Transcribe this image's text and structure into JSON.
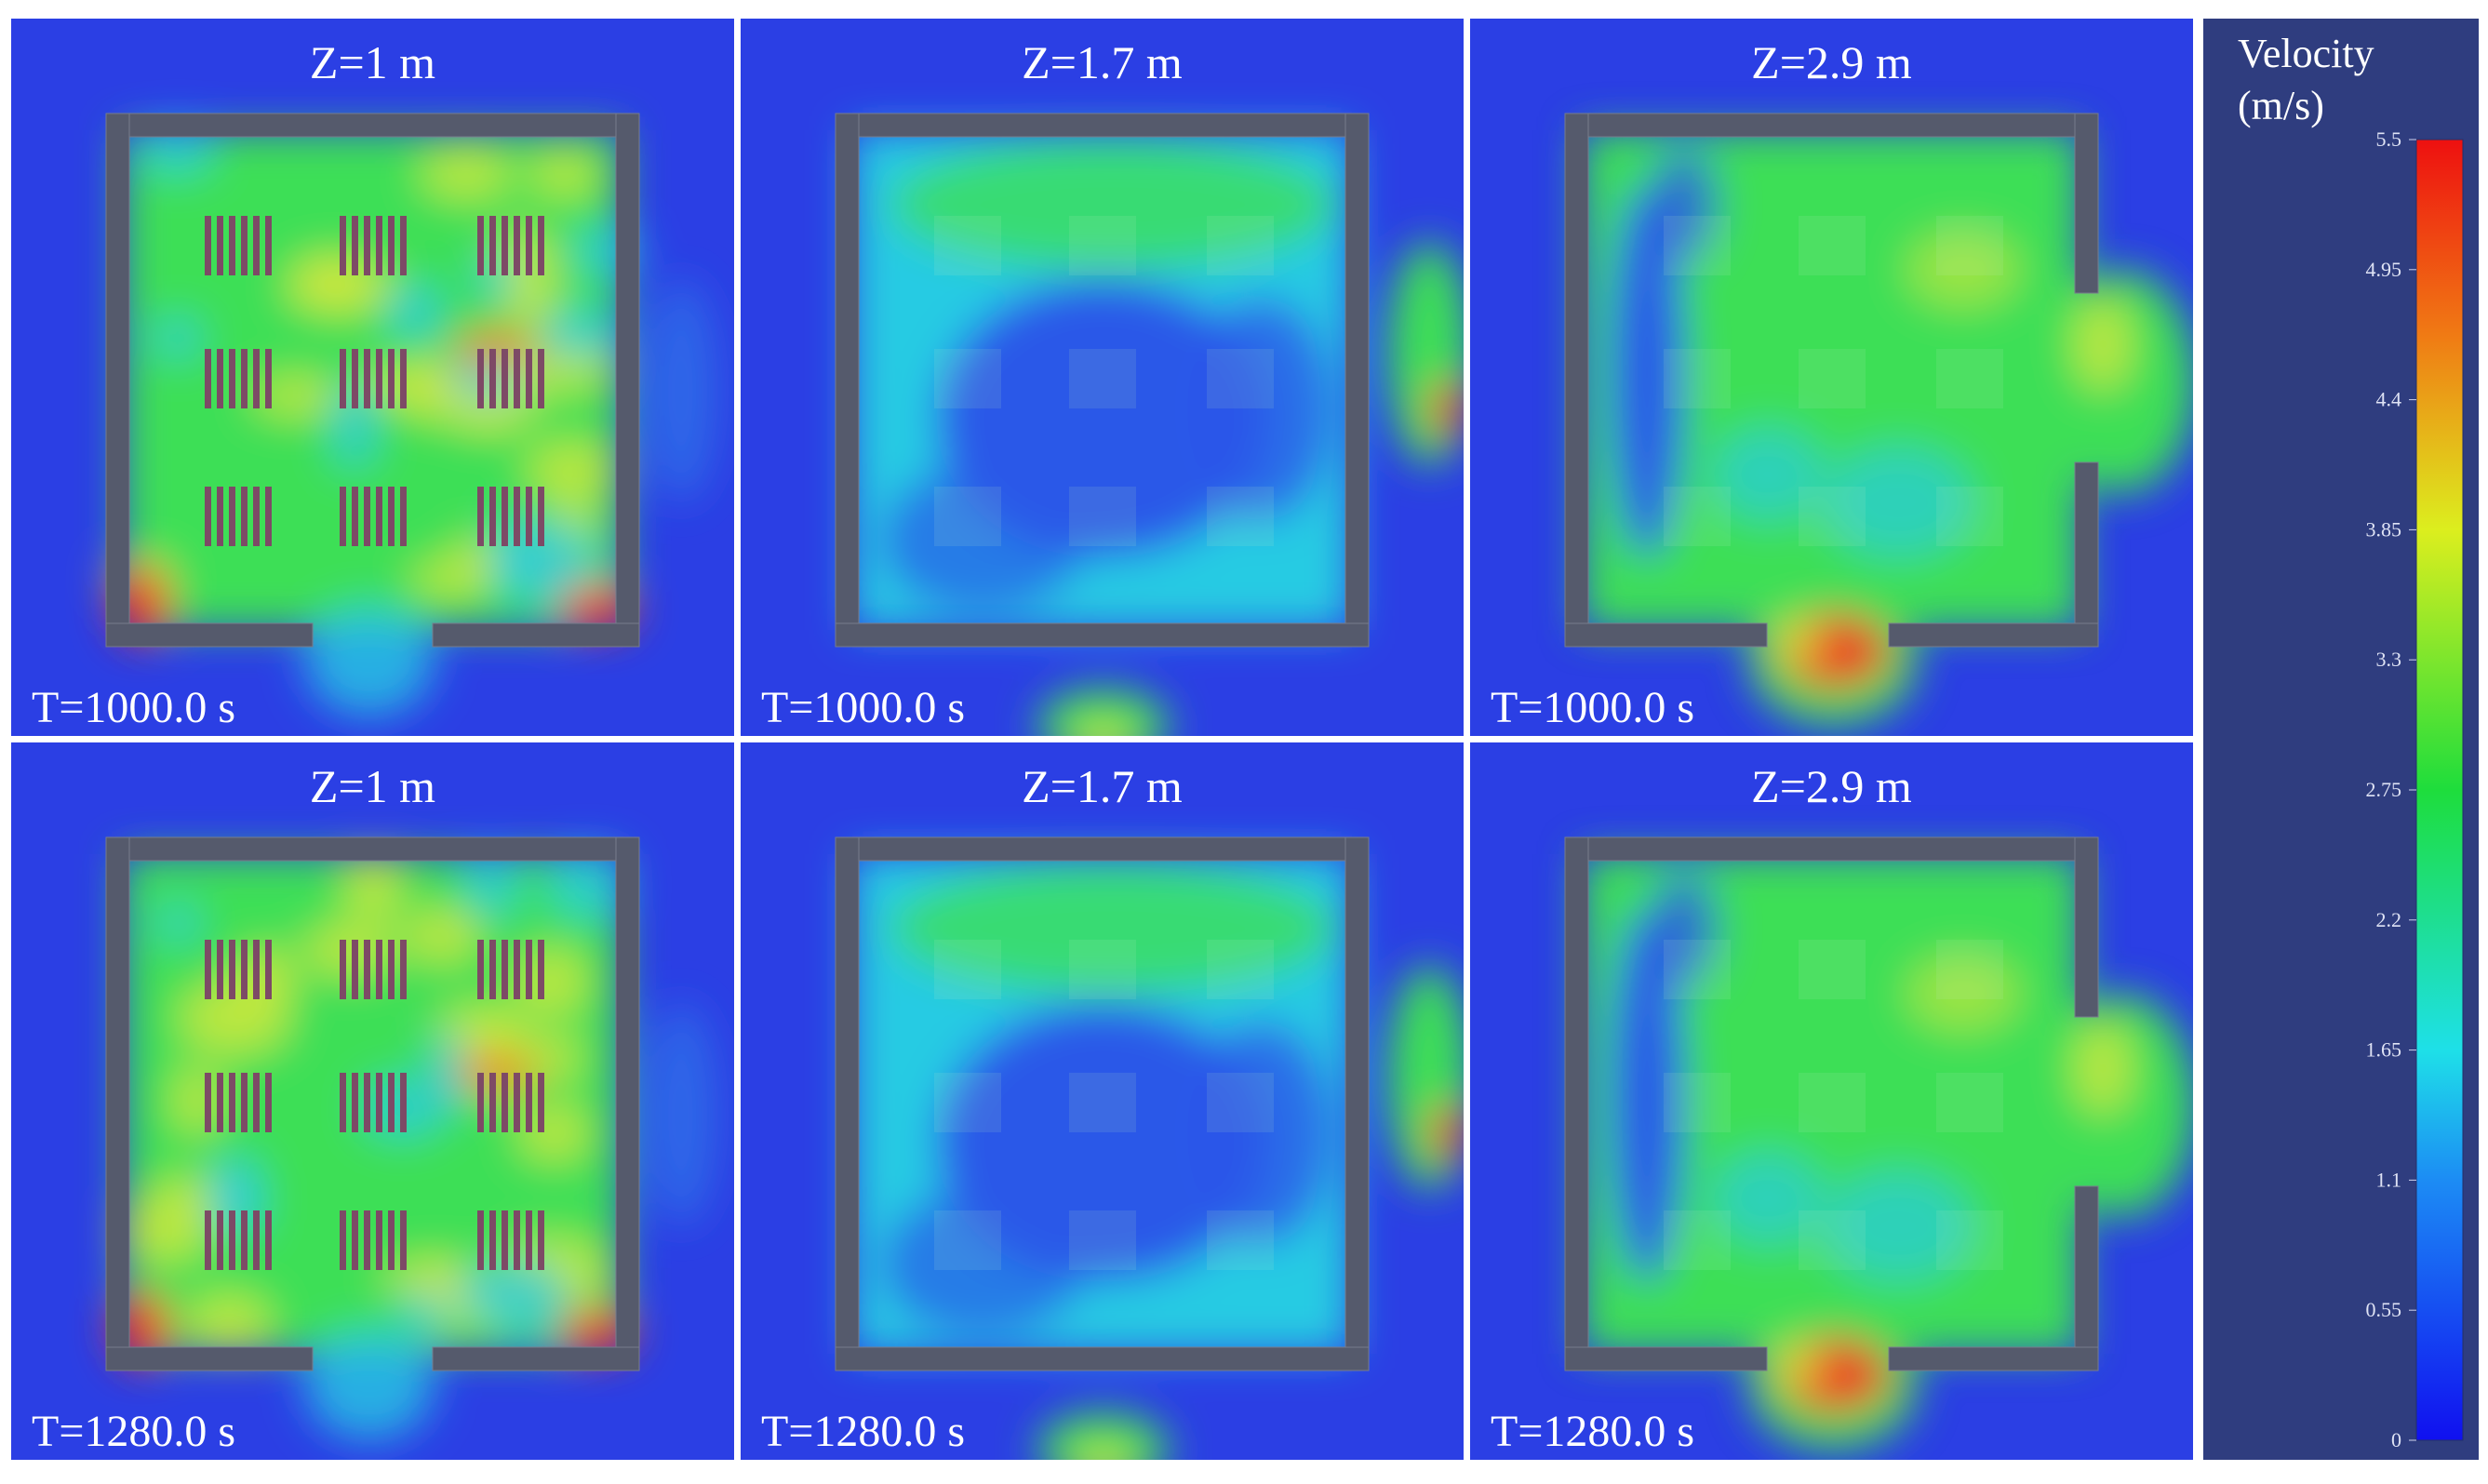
{
  "panels": [
    {
      "title": "Z=1 m",
      "time": "T=1000.0 s"
    },
    {
      "title": "Z=1.7 m",
      "time": "T=1000.0 s"
    },
    {
      "title": "Z=2.9 m",
      "time": "T=1000.0 s"
    },
    {
      "title": "Z=1 m",
      "time": "T=1280.0 s"
    },
    {
      "title": "Z=1.7 m",
      "time": "T=1280.0 s"
    },
    {
      "title": "Z=2.9 m",
      "time": "T=1280.0 s"
    }
  ],
  "colorbar": {
    "title": "Velocity",
    "unit": "(m/s)",
    "range": [
      0,
      5.5
    ],
    "ticks": [
      0,
      0.55,
      1.1,
      1.65,
      2.2,
      2.75,
      3.3,
      3.85,
      4.4,
      4.95,
      5.5
    ]
  }
}
